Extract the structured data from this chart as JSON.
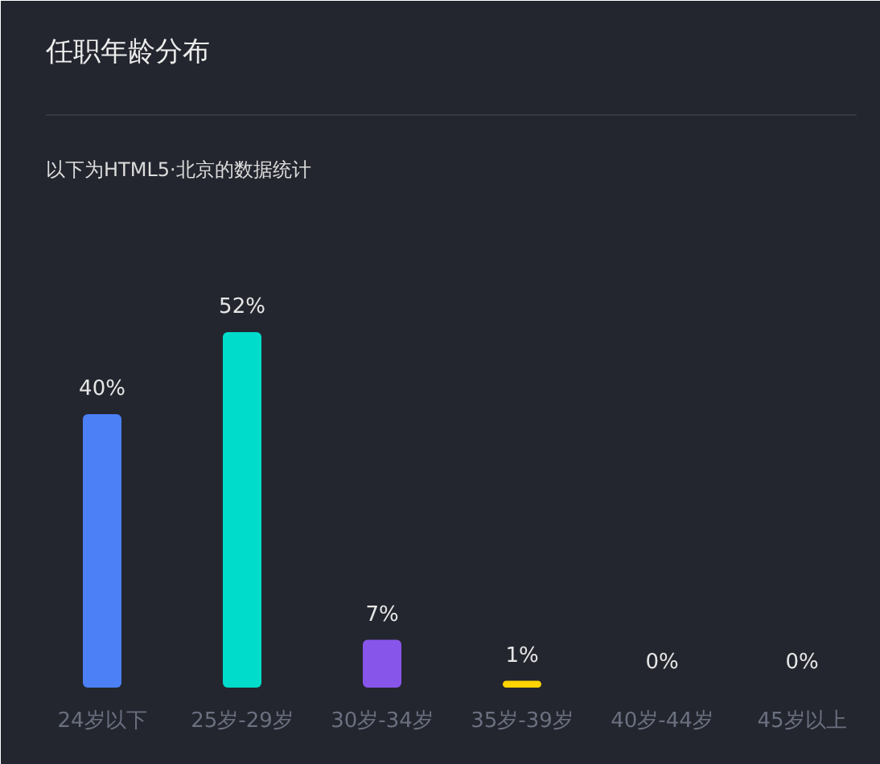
{
  "chart_data": {
    "type": "bar",
    "title": "任职年龄分布",
    "subtitle": "以下为HTML5·北京的数据统计",
    "categories": [
      "24岁以下",
      "25岁-29岁",
      "30岁-34岁",
      "35岁-39岁",
      "40岁-44岁",
      "45岁以上"
    ],
    "values": [
      40,
      52,
      7,
      1,
      0,
      0
    ],
    "colors": [
      "#4b80f7",
      "#00dccb",
      "#8855ea",
      "#ffd400",
      null,
      null
    ],
    "value_labels": [
      "40%",
      "52%",
      "7%",
      "1%",
      "0%",
      "0%"
    ]
  }
}
